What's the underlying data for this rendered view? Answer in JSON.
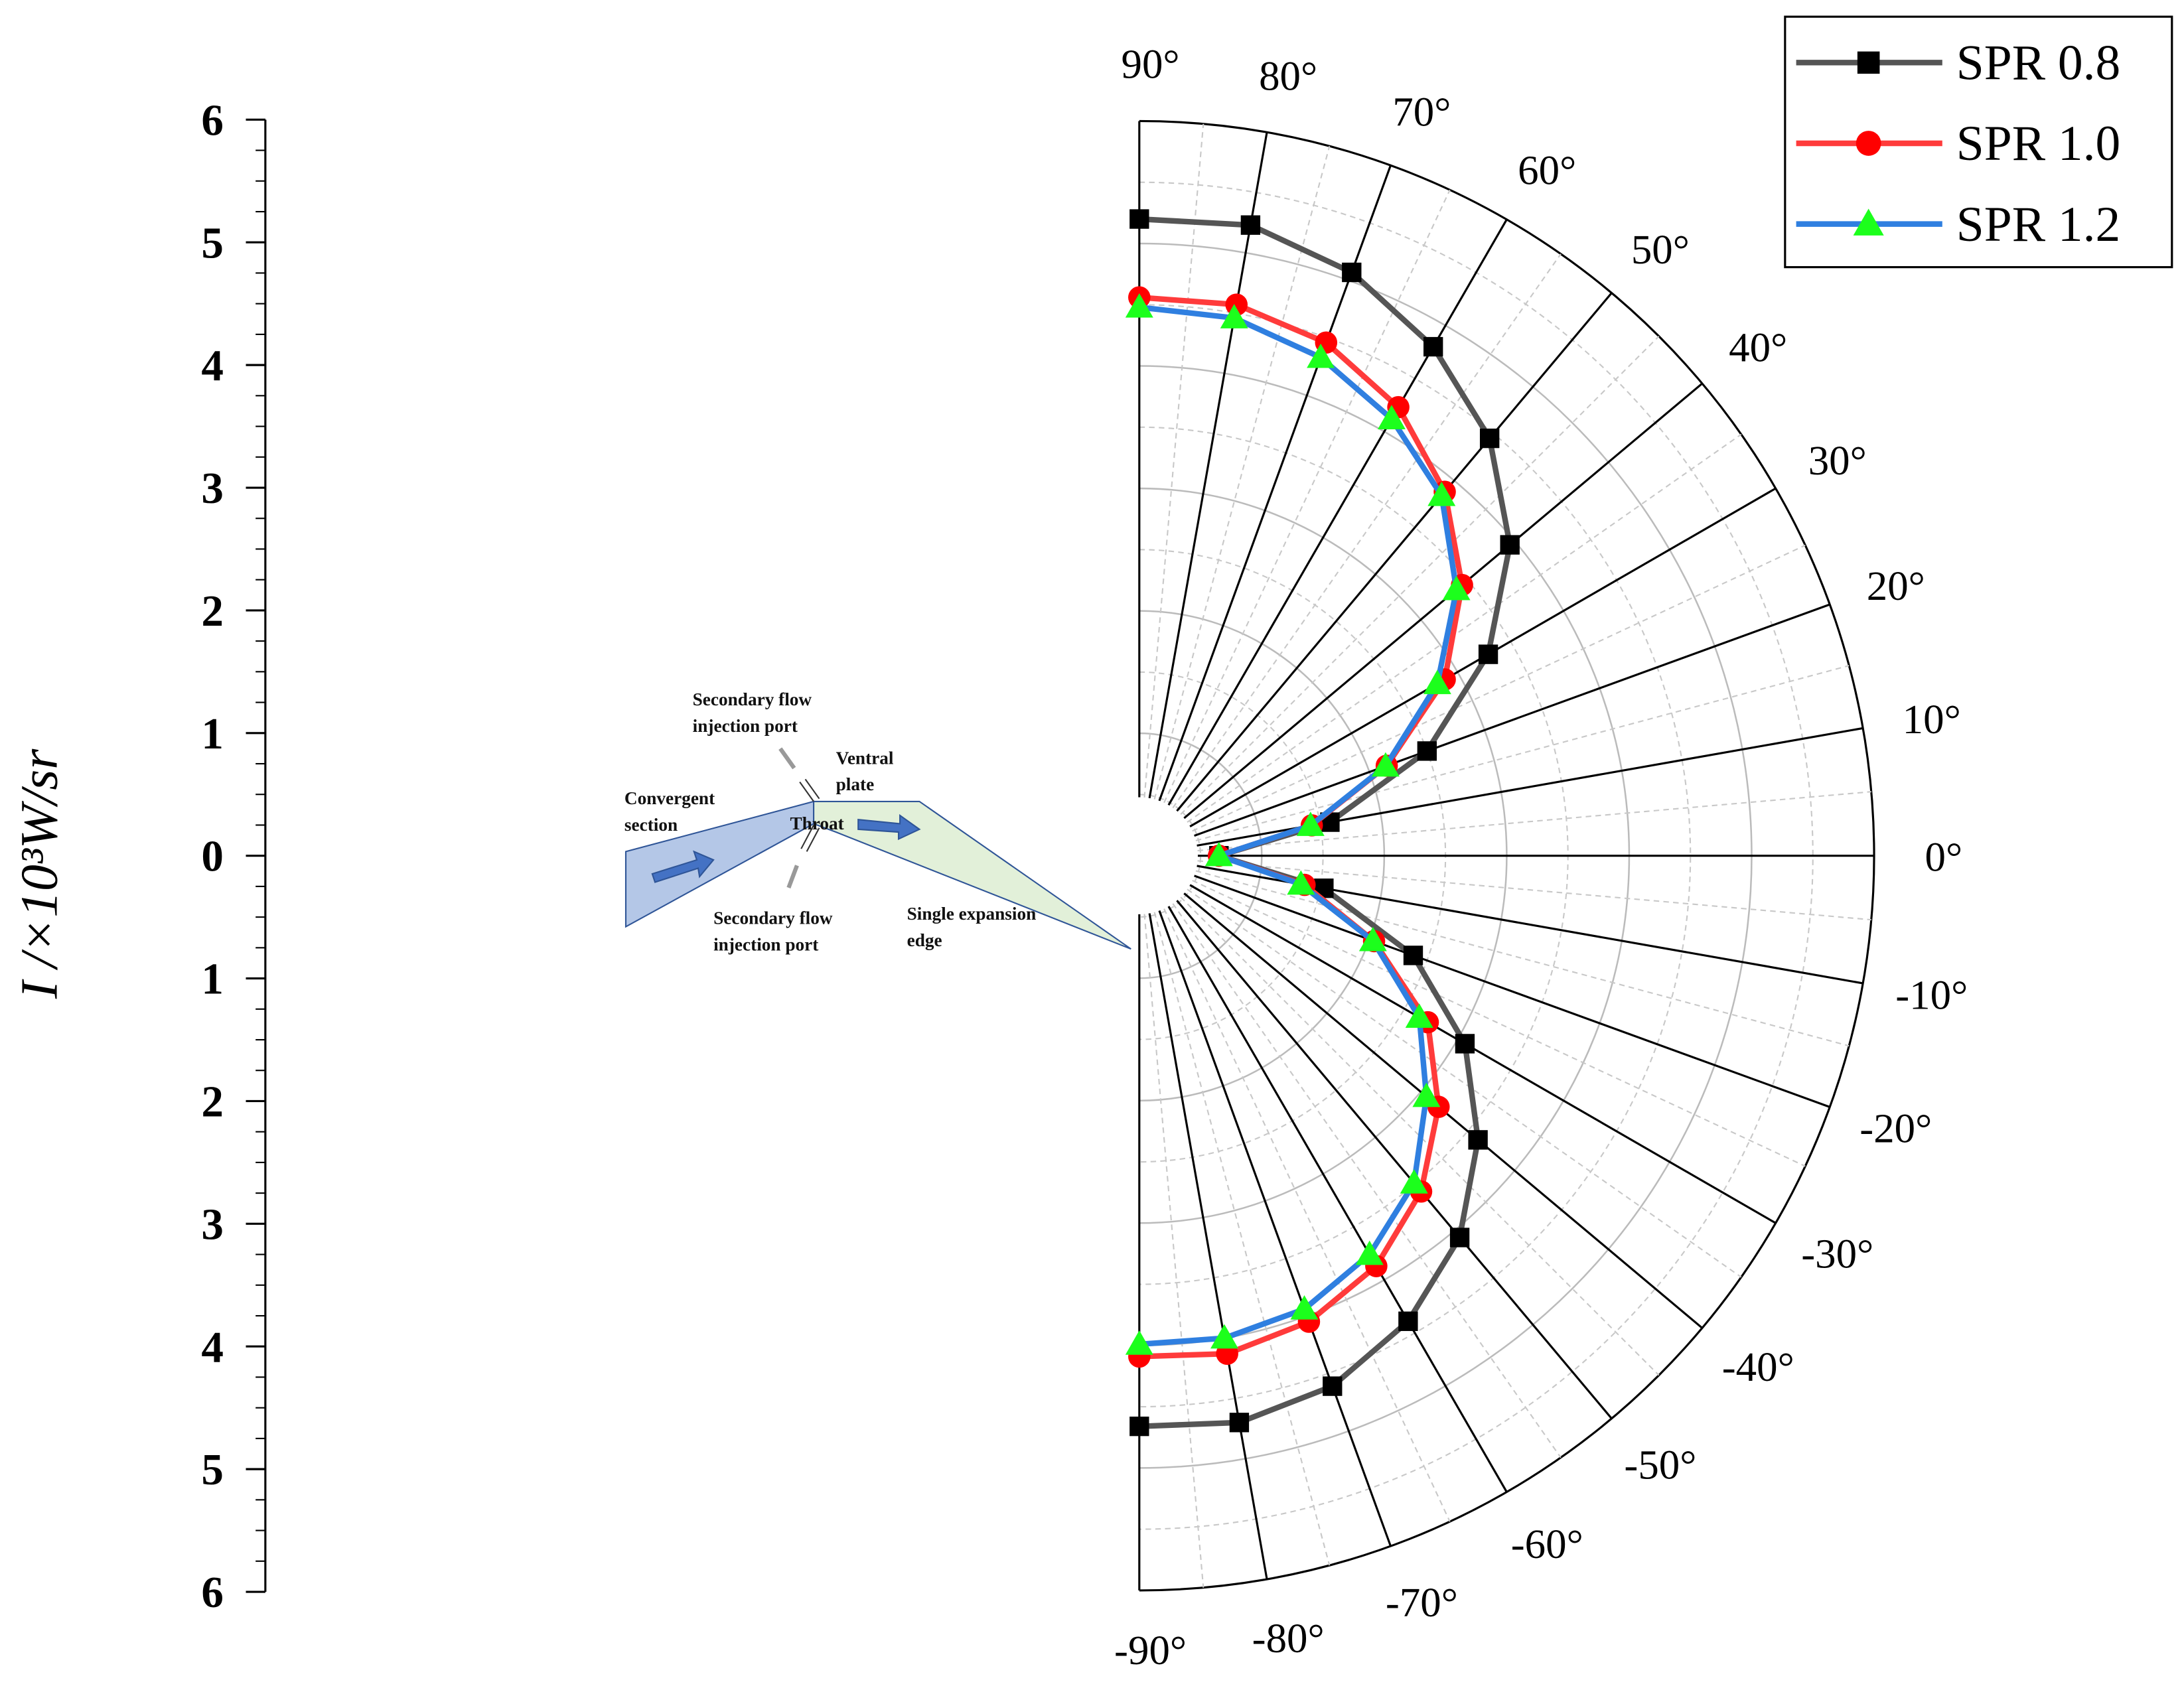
{
  "chart_data": {
    "type": "polar",
    "ylabel": "I /×10³W/sr",
    "ylim": [
      -6,
      6
    ],
    "yticks": [
      6,
      5,
      4,
      3,
      2,
      1,
      0,
      {
        "value": -1,
        "label": "1"
      },
      {
        "value": -2,
        "label": "2"
      },
      {
        "value": -3,
        "label": "3"
      },
      {
        "value": -4,
        "label": "4"
      },
      {
        "value": -5,
        "label": "5"
      },
      {
        "value": -6,
        "label": "6"
      }
    ],
    "rlim": [
      0,
      6
    ],
    "rgrid": [
      1,
      2,
      3,
      4,
      5,
      6
    ],
    "theta": [
      90,
      80,
      70,
      60,
      50,
      40,
      30,
      20,
      10,
      0,
      -10,
      -20,
      -30,
      -40,
      -50,
      -60,
      -70,
      -80,
      -90
    ],
    "thetaticks": [
      {
        "value": 90,
        "label": "90°"
      },
      {
        "value": 80,
        "label": "80°"
      },
      {
        "value": 70,
        "label": "70°"
      },
      {
        "value": 60,
        "label": "60°"
      },
      {
        "value": 50,
        "label": "50°"
      },
      {
        "value": 40,
        "label": "40°"
      },
      {
        "value": 30,
        "label": "30°"
      },
      {
        "value": 20,
        "label": "20°"
      },
      {
        "value": 10,
        "label": "10°"
      },
      {
        "value": 0,
        "label": "0°"
      },
      {
        "value": -10,
        "label": "-10°"
      },
      {
        "value": -20,
        "label": "-20°"
      },
      {
        "value": -30,
        "label": "-30°"
      },
      {
        "value": -40,
        "label": "-40°"
      },
      {
        "value": -50,
        "label": "-50°"
      },
      {
        "value": -60,
        "label": "-60°"
      },
      {
        "value": -70,
        "label": "-70°"
      },
      {
        "value": -80,
        "label": "-80°"
      },
      {
        "value": -90,
        "label": "-90°"
      }
    ],
    "grid": true,
    "legend": "upper right",
    "series": [
      {
        "name": "SPR 0.8",
        "color": "#555555",
        "marker": "square",
        "marker_color": "#000000",
        "values": [
          5.2,
          5.23,
          5.07,
          4.8,
          4.45,
          3.95,
          3.29,
          2.5,
          1.58,
          0.65,
          1.53,
          2.38,
          3.07,
          3.61,
          4.07,
          4.39,
          4.61,
          4.7,
          4.66
        ]
      },
      {
        "name": "SPR 1.0",
        "color": "#ff3b3b",
        "marker": "circle",
        "marker_color": "#ff0000",
        "values": [
          4.56,
          4.57,
          4.46,
          4.23,
          3.88,
          3.44,
          2.88,
          2.15,
          1.43,
          0.65,
          1.37,
          2.04,
          2.72,
          3.19,
          3.58,
          3.87,
          4.05,
          4.13,
          4.09
        ]
      },
      {
        "name": "SPR 1.2",
        "color": "#2f7fe0",
        "marker": "triangle",
        "marker_color": "#1cff1c",
        "values": [
          4.48,
          4.46,
          4.33,
          4.12,
          3.84,
          3.38,
          2.81,
          2.14,
          1.42,
          0.65,
          1.34,
          2.03,
          2.64,
          3.06,
          3.49,
          3.76,
          3.94,
          4.0,
          3.99
        ]
      }
    ],
    "annotations": [
      "Secondary flow injection port",
      "Ventral plate",
      "Convergent section",
      "Throat",
      "Secondary flow injection port",
      "Single expansion edge"
    ]
  }
}
